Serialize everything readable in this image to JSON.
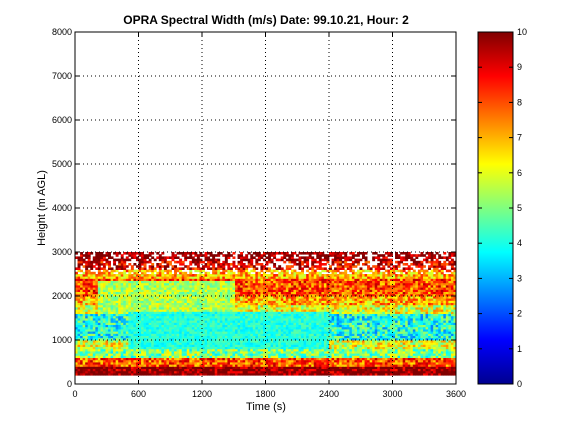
{
  "chart_data": {
    "type": "heatmap",
    "title": "OPRA Spectral Width (m/s)  Date: 99.10.21, Hour: 2",
    "xlabel": "Time (s)",
    "ylabel": "Height (m AGL)",
    "xlim": [
      0,
      3600
    ],
    "ylim": [
      0,
      8000
    ],
    "xticks": [
      "0",
      "600",
      "1200",
      "1800",
      "2400",
      "3000",
      "3600"
    ],
    "yticks": [
      "0",
      "1000",
      "2000",
      "3000",
      "4000",
      "5000",
      "6000",
      "7000",
      "8000"
    ],
    "grid": true,
    "colorbar": {
      "range": [
        0,
        10
      ],
      "ticks": [
        "0",
        "1",
        "2",
        "3",
        "4",
        "5",
        "6",
        "7",
        "8",
        "9",
        "10"
      ],
      "colormap": "jet"
    },
    "data_summary": {
      "height_range_m": [
        300,
        3000
      ],
      "time_range_s": [
        0,
        3600
      ],
      "rows": [
        {
          "height_m": 300,
          "typical_value": 10
        },
        {
          "height_m": 500,
          "typical_value": 8
        },
        {
          "height_m": 700,
          "typical_value": 5
        },
        {
          "height_m": 900,
          "typical_value": 6
        },
        {
          "height_m": 1100,
          "typical_value": 4
        },
        {
          "height_m": 1300,
          "typical_value": 4
        },
        {
          "height_m": 1500,
          "typical_value": 4
        },
        {
          "height_m": 1700,
          "typical_value": 6
        },
        {
          "height_m": 1900,
          "typical_value": 7
        },
        {
          "height_m": 2100,
          "typical_value": 8
        },
        {
          "height_m": 2300,
          "typical_value": 8
        },
        {
          "height_m": 2500,
          "typical_value": 7
        },
        {
          "height_m": 2700,
          "typical_value": 9
        },
        {
          "height_m": 2900,
          "typical_value": 10
        }
      ]
    }
  }
}
